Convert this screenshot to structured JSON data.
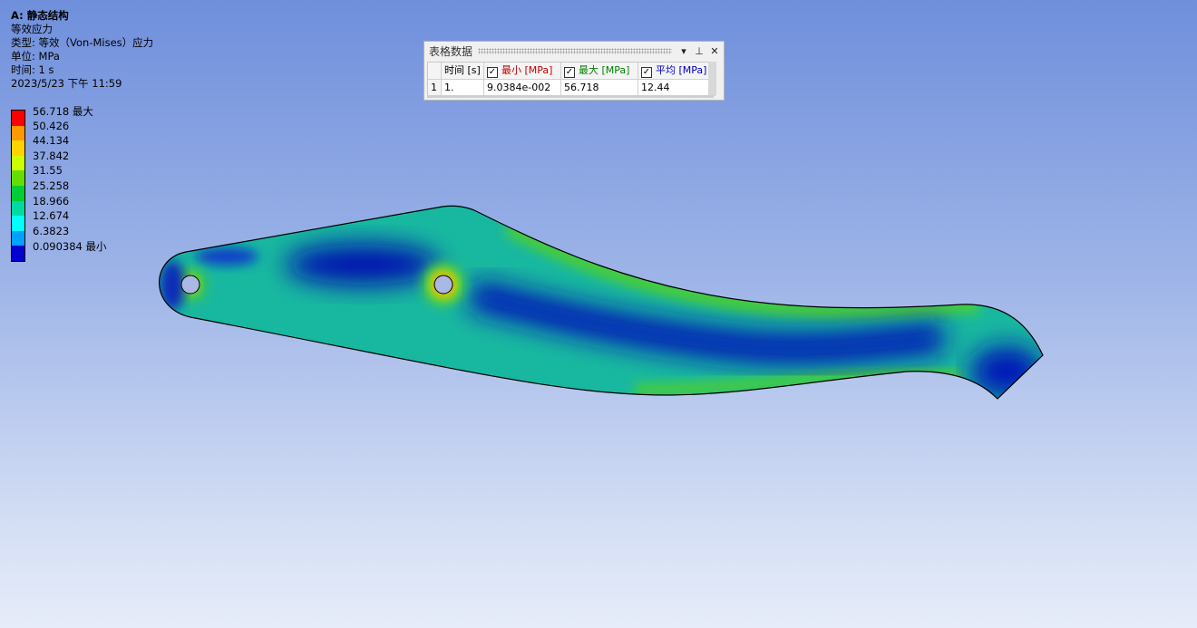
{
  "info": {
    "title": "A: 静态结构",
    "result": "等效应力",
    "type": "类型: 等效（Von-Mises）应力",
    "unit": "单位: MPa",
    "time": "时间: 1 s",
    "datetime": "2023/5/23 下午 11:59"
  },
  "legend": {
    "items": [
      {
        "label": "56.718 最大",
        "color": "#ff0000"
      },
      {
        "label": "50.426",
        "color": "#ff9900"
      },
      {
        "label": "44.134",
        "color": "#ffd400"
      },
      {
        "label": "37.842",
        "color": "#ccff00"
      },
      {
        "label": "31.55",
        "color": "#66dd00"
      },
      {
        "label": "25.258",
        "color": "#00cc33"
      },
      {
        "label": "18.966",
        "color": "#00d9a0"
      },
      {
        "label": "12.674",
        "color": "#00ffff"
      },
      {
        "label": "6.3823",
        "color": "#00a0ff"
      },
      {
        "label": "0.090384 最小",
        "color": "#0000d0"
      }
    ]
  },
  "table": {
    "title": "表格数据",
    "controls": {
      "dropdown": "▾",
      "pin": "⊥",
      "close": "✕"
    },
    "headers": {
      "time": "时间 [s]",
      "min": "最小 [MPa]",
      "max": "最大 [MPa]",
      "avg": "平均 [MPa]"
    },
    "header_colors": {
      "min": "#c00000",
      "max": "#008000",
      "avg": "#0000c0"
    },
    "rows": [
      {
        "index": "1",
        "time": "1.",
        "min": "9.0384e-002",
        "max": "56.718",
        "avg": "12.44"
      }
    ]
  }
}
